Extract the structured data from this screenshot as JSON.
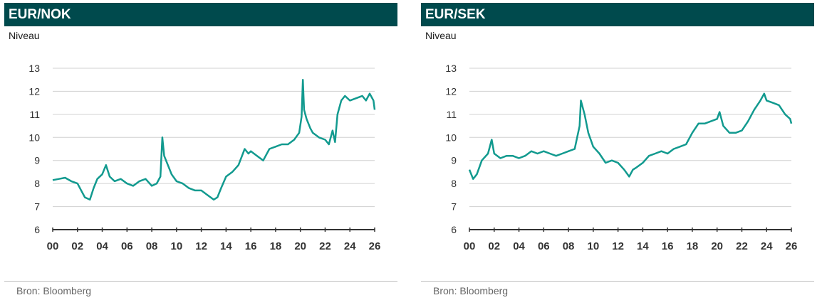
{
  "chart_data": [
    {
      "type": "line",
      "title": "EUR/NOK",
      "ylabel": "Niveau",
      "source": "Bron: Bloomberg",
      "xlim": [
        2000,
        2026
      ],
      "ylim": [
        6,
        13
      ],
      "yticks": [
        6,
        7,
        8,
        9,
        10,
        11,
        12,
        13
      ],
      "xticks": [
        2000,
        2002,
        2004,
        2006,
        2008,
        2010,
        2012,
        2014,
        2016,
        2018,
        2020,
        2022,
        2024,
        2026
      ],
      "xticklabels": [
        "00",
        "02",
        "04",
        "06",
        "08",
        "10",
        "12",
        "14",
        "16",
        "18",
        "20",
        "22",
        "24",
        "26"
      ],
      "grid": true,
      "color": "#129a8f",
      "x": [
        2000.0,
        2000.5,
        2001.0,
        2001.5,
        2002.0,
        2002.3,
        2002.6,
        2003.0,
        2003.3,
        2003.6,
        2004.0,
        2004.3,
        2004.6,
        2005.0,
        2005.5,
        2006.0,
        2006.5,
        2007.0,
        2007.5,
        2008.0,
        2008.4,
        2008.7,
        2008.85,
        2009.0,
        2009.3,
        2009.6,
        2010.0,
        2010.5,
        2011.0,
        2011.5,
        2012.0,
        2012.5,
        2013.0,
        2013.3,
        2013.6,
        2014.0,
        2014.5,
        2015.0,
        2015.5,
        2015.8,
        2016.0,
        2016.5,
        2017.0,
        2017.5,
        2018.0,
        2018.5,
        2019.0,
        2019.5,
        2019.9,
        2020.1,
        2020.2,
        2020.3,
        2020.5,
        2020.8,
        2021.0,
        2021.5,
        2022.0,
        2022.3,
        2022.6,
        2022.8,
        2023.0,
        2023.3,
        2023.6,
        2024.0,
        2024.5,
        2025.0,
        2025.3,
        2025.6,
        2025.9,
        2026.0
      ],
      "values": [
        8.15,
        8.2,
        8.25,
        8.1,
        8.0,
        7.7,
        7.4,
        7.3,
        7.8,
        8.2,
        8.4,
        8.8,
        8.3,
        8.1,
        8.2,
        8.0,
        7.9,
        8.1,
        8.2,
        7.9,
        8.0,
        8.3,
        10.0,
        9.2,
        8.8,
        8.4,
        8.1,
        8.0,
        7.8,
        7.7,
        7.7,
        7.5,
        7.3,
        7.4,
        7.8,
        8.3,
        8.5,
        8.8,
        9.5,
        9.3,
        9.4,
        9.2,
        9.0,
        9.5,
        9.6,
        9.7,
        9.7,
        9.9,
        10.2,
        10.9,
        12.5,
        11.2,
        10.8,
        10.4,
        10.2,
        10.0,
        9.9,
        9.7,
        10.3,
        9.8,
        11.0,
        11.6,
        11.8,
        11.6,
        11.7,
        11.8,
        11.6,
        11.9,
        11.6,
        11.2
      ]
    },
    {
      "type": "line",
      "title": "EUR/SEK",
      "ylabel": "Niveau",
      "source": "Bron: Bloomberg",
      "xlim": [
        2000,
        2026
      ],
      "ylim": [
        6,
        13
      ],
      "yticks": [
        6,
        7,
        8,
        9,
        10,
        11,
        12,
        13
      ],
      "xticks": [
        2000,
        2002,
        2004,
        2006,
        2008,
        2010,
        2012,
        2014,
        2016,
        2018,
        2020,
        2022,
        2024,
        2026
      ],
      "xticklabels": [
        "00",
        "02",
        "04",
        "06",
        "08",
        "10",
        "12",
        "14",
        "16",
        "18",
        "20",
        "22",
        "24",
        "26"
      ],
      "grid": true,
      "color": "#129a8f",
      "x": [
        2000.0,
        2000.3,
        2000.6,
        2001.0,
        2001.5,
        2001.8,
        2002.0,
        2002.5,
        2003.0,
        2003.5,
        2004.0,
        2004.5,
        2005.0,
        2005.5,
        2006.0,
        2006.5,
        2007.0,
        2007.5,
        2008.0,
        2008.5,
        2008.9,
        2009.0,
        2009.3,
        2009.6,
        2010.0,
        2010.5,
        2011.0,
        2011.5,
        2012.0,
        2012.5,
        2012.9,
        2013.2,
        2013.5,
        2014.0,
        2014.5,
        2015.0,
        2015.5,
        2016.0,
        2016.5,
        2017.0,
        2017.5,
        2018.0,
        2018.5,
        2019.0,
        2019.5,
        2020.0,
        2020.2,
        2020.5,
        2021.0,
        2021.5,
        2022.0,
        2022.5,
        2023.0,
        2023.5,
        2023.8,
        2024.0,
        2024.5,
        2025.0,
        2025.5,
        2025.9,
        2026.0
      ],
      "values": [
        8.6,
        8.2,
        8.4,
        9.0,
        9.3,
        9.9,
        9.3,
        9.1,
        9.2,
        9.2,
        9.1,
        9.2,
        9.4,
        9.3,
        9.4,
        9.3,
        9.2,
        9.3,
        9.4,
        9.5,
        10.5,
        11.6,
        11.0,
        10.2,
        9.6,
        9.3,
        8.9,
        9.0,
        8.9,
        8.6,
        8.3,
        8.6,
        8.7,
        8.9,
        9.2,
        9.3,
        9.4,
        9.3,
        9.5,
        9.6,
        9.7,
        10.2,
        10.6,
        10.6,
        10.7,
        10.8,
        11.1,
        10.5,
        10.2,
        10.2,
        10.3,
        10.7,
        11.2,
        11.6,
        11.9,
        11.6,
        11.5,
        11.4,
        11.0,
        10.8,
        10.6
      ]
    }
  ]
}
